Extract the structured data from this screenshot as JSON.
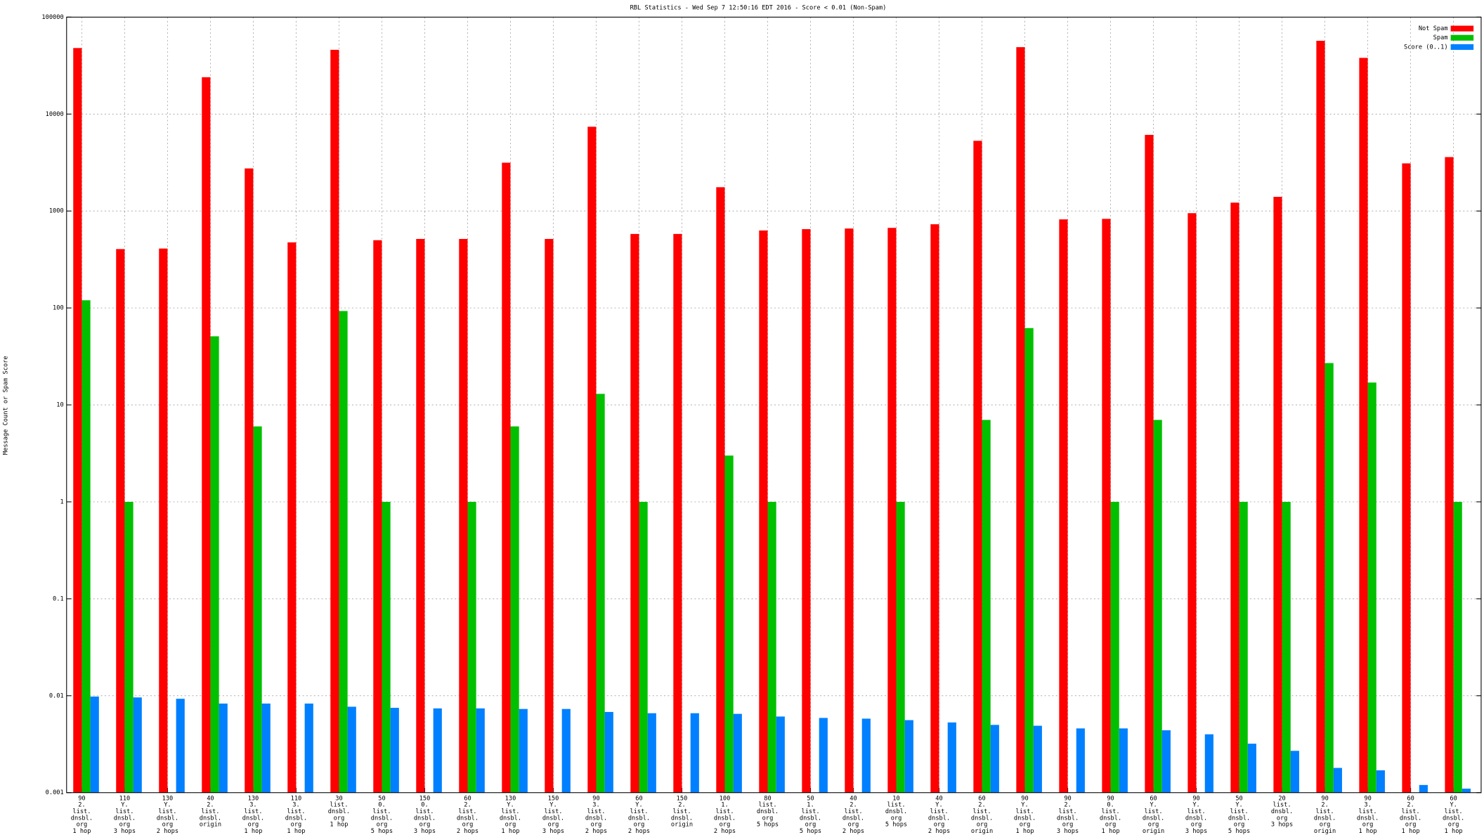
{
  "chart_data": {
    "type": "bar",
    "title": "RBL Statistics - Wed Sep  7 12:50:16 EDT 2016 - Score < 0.01 (Non-Spam)",
    "y_label": "Message Count or Spam Score",
    "log_scale": true,
    "grid": true,
    "legend_position": "top-right",
    "ylim": [
      0.001,
      100000
    ],
    "yticks": [
      0.001,
      0.01,
      0.1,
      1,
      10,
      100,
      1000,
      10000,
      100000
    ],
    "categories": [
      [
        "90",
        "2.",
        "list.",
        "dnsbl.",
        "org",
        "1 hop"
      ],
      [
        "110",
        "Y.",
        "list.",
        "dnsbl.",
        "org",
        "3 hops"
      ],
      [
        "130",
        "Y.",
        "list.",
        "dnsbl.",
        "org",
        "2 hops"
      ],
      [
        "40",
        "2.",
        "list.",
        "dnsbl.",
        "origin"
      ],
      [
        "130",
        "3.",
        "list.",
        "dnsbl.",
        "org",
        "1 hop"
      ],
      [
        "110",
        "3.",
        "list.",
        "dnsbl.",
        "org",
        "1 hop"
      ],
      [
        "30",
        "list.",
        "dnsbl.",
        "org",
        "1 hop"
      ],
      [
        "50",
        "0.",
        "list.",
        "dnsbl.",
        "org",
        "5 hops"
      ],
      [
        "150",
        "0.",
        "list.",
        "dnsbl.",
        "org",
        "3 hops"
      ],
      [
        "60",
        "2.",
        "list.",
        "dnsbl.",
        "org",
        "2 hops"
      ],
      [
        "130",
        "Y.",
        "list.",
        "dnsbl.",
        "org",
        "1 hop"
      ],
      [
        "150",
        "Y.",
        "list.",
        "dnsbl.",
        "org",
        "3 hops"
      ],
      [
        "90",
        "3.",
        "list.",
        "dnsbl.",
        "org",
        "2 hops"
      ],
      [
        "60",
        "Y.",
        "list.",
        "dnsbl.",
        "org",
        "2 hops"
      ],
      [
        "150",
        "2.",
        "list.",
        "dnsbl.",
        "origin"
      ],
      [
        "100",
        "1.",
        "list.",
        "dnsbl.",
        "org",
        "2 hops"
      ],
      [
        "80",
        "list.",
        "dnsbl.",
        "org",
        "5 hops"
      ],
      [
        "50",
        "1.",
        "list.",
        "dnsbl.",
        "org",
        "5 hops"
      ],
      [
        "40",
        "2.",
        "list.",
        "dnsbl.",
        "org",
        "2 hops"
      ],
      [
        "10",
        "list.",
        "dnsbl.",
        "org",
        "5 hops"
      ],
      [
        "40",
        "Y.",
        "list.",
        "dnsbl.",
        "org",
        "2 hops"
      ],
      [
        "60",
        "2.",
        "list.",
        "dnsbl.",
        "org",
        "origin"
      ],
      [
        "90",
        "Y.",
        "list.",
        "dnsbl.",
        "org",
        "1 hop"
      ],
      [
        "90",
        "2.",
        "list.",
        "dnsbl.",
        "org",
        "3 hops"
      ],
      [
        "90",
        "0.",
        "list.",
        "dnsbl.",
        "org",
        "1 hop"
      ],
      [
        "60",
        "Y.",
        "list.",
        "dnsbl.",
        "org",
        "origin"
      ],
      [
        "90",
        "Y.",
        "list.",
        "dnsbl.",
        "org",
        "3 hops"
      ],
      [
        "50",
        "Y.",
        "list.",
        "dnsbl.",
        "org",
        "5 hops"
      ],
      [
        "20",
        "list.",
        "dnsbl.",
        "org",
        "3 hops"
      ],
      [
        "90",
        "2.",
        "list.",
        "dnsbl.",
        "org",
        "origin"
      ],
      [
        "90",
        "3.",
        "list.",
        "dnsbl.",
        "org",
        "1 hop"
      ],
      [
        "60",
        "2.",
        "list.",
        "dnsbl.",
        "org",
        "1 hop"
      ],
      [
        "60",
        "Y.",
        "list.",
        "dnsbl.",
        "org",
        "1 hop"
      ]
    ],
    "series": [
      {
        "name": "Not Spam",
        "color": "#ff0000",
        "values": [
          48000,
          405,
          410,
          24000,
          2750,
          475,
          46000,
          500,
          515,
          515,
          3150,
          515,
          7400,
          580,
          580,
          1760,
          630,
          650,
          660,
          670,
          730,
          5300,
          49000,
          820,
          830,
          6100,
          950,
          1220,
          1400,
          57000,
          38000,
          3100,
          3600
        ]
      },
      {
        "name": "Spam",
        "color": "#00c000",
        "values": [
          120,
          1,
          null,
          51,
          6,
          null,
          93,
          1,
          null,
          1,
          6,
          null,
          13,
          1,
          null,
          3,
          1,
          null,
          null,
          1,
          null,
          7,
          62,
          null,
          1,
          7,
          null,
          1,
          1,
          27,
          17,
          null,
          1
        ]
      },
      {
        "name": "Score (0..1)",
        "color": "#0080ff",
        "values": [
          0.0098,
          0.0096,
          0.0093,
          0.0083,
          0.0083,
          0.0083,
          0.0077,
          0.0075,
          0.0074,
          0.0074,
          0.0073,
          0.0073,
          0.0068,
          0.0066,
          0.0066,
          0.0065,
          0.0061,
          0.0059,
          0.0058,
          0.0056,
          0.0053,
          0.005,
          0.0049,
          0.0046,
          0.0046,
          0.0044,
          0.004,
          0.0032,
          0.0027,
          0.0018,
          0.0017,
          0.0012,
          0.0011
        ]
      }
    ]
  }
}
